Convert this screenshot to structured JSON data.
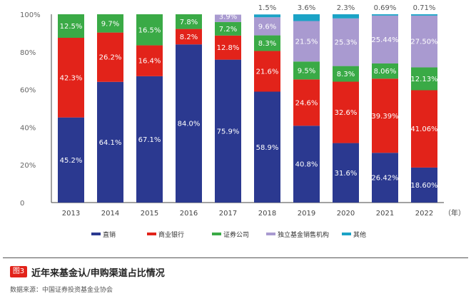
{
  "chart_data": {
    "type": "bar",
    "stacked": true,
    "categories": [
      "2013",
      "2014",
      "2015",
      "2016",
      "2017",
      "2018",
      "2019",
      "2020",
      "2021",
      "2022"
    ],
    "x_unit": "（年）",
    "y_ticks": [
      "0",
      "20%",
      "40%",
      "60%",
      "80%",
      "100%"
    ],
    "ylim": [
      0,
      100
    ],
    "legend_position": "bottom",
    "series": [
      {
        "name": "直销",
        "color": "#2b3990",
        "values": [
          45.2,
          64.1,
          67.1,
          84.0,
          75.9,
          58.9,
          40.8,
          31.6,
          26.42,
          18.6
        ],
        "labels": [
          "45.2%",
          "64.1%",
          "67.1%",
          "84.0%",
          "75.9%",
          "58.9%",
          "40.8%",
          "31.6%",
          "26.42%",
          "18.60%"
        ]
      },
      {
        "name": "商业银行",
        "color": "#e2231a",
        "values": [
          42.3,
          26.2,
          16.4,
          8.2,
          12.8,
          21.6,
          24.6,
          32.6,
          39.39,
          41.06
        ],
        "labels": [
          "42.3%",
          "26.2%",
          "16.4%",
          "8.2%",
          "12.8%",
          "21.6%",
          "24.6%",
          "32.6%",
          "39.39%",
          "41.06%"
        ]
      },
      {
        "name": "证券公司",
        "color": "#3aaa46",
        "values": [
          12.5,
          9.7,
          16.5,
          7.8,
          7.2,
          8.3,
          9.5,
          8.3,
          8.06,
          12.13
        ],
        "labels": [
          "12.5%",
          "9.7%",
          "16.5%",
          "7.8%",
          "7.2%",
          "8.3%",
          "9.5%",
          "8.3%",
          "8.06%",
          "12.13%"
        ]
      },
      {
        "name": "独立基金销售机构",
        "color": "#a99ad0",
        "values": [
          0,
          0,
          0,
          0,
          3.9,
          9.6,
          21.5,
          25.3,
          25.44,
          27.5
        ],
        "labels": [
          "",
          "",
          "",
          "",
          "3.9%",
          "9.6%",
          "21.5%",
          "25.3%",
          "25.44%",
          "27.50%"
        ]
      },
      {
        "name": "其他",
        "color": "#1ba3c6",
        "values": [
          0,
          0,
          0,
          0,
          0,
          1.5,
          3.6,
          2.3,
          0.69,
          0.71
        ],
        "labels": [
          "",
          "",
          "",
          "",
          "",
          "1.5%",
          "3.6%",
          "2.3%",
          "0.69%",
          "0.71%"
        ]
      }
    ]
  },
  "figure": {
    "tag": "图3",
    "title": "近年来基金认/申购渠道占比情况",
    "source": "数据来源：中国证券投资基金业协会"
  }
}
